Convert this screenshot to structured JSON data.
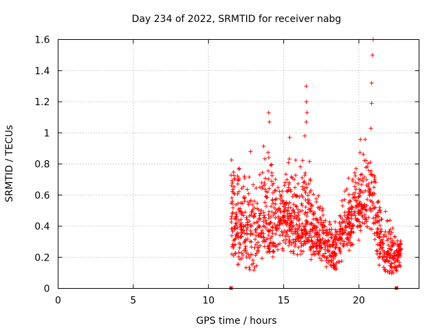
{
  "chart_data": {
    "type": "scatter",
    "title": "Day 234 of 2022, SRMTID for receiver nabg",
    "xlabel": "GPS time / hours",
    "ylabel": "SRMTID / TECUs",
    "xlim": [
      0,
      24
    ],
    "ylim": [
      0,
      1.6
    ],
    "xticks": [
      0,
      5,
      10,
      15,
      20
    ],
    "xtick_labels": [
      "0",
      "5",
      "10",
      "15",
      "20"
    ],
    "yticks": [
      0,
      0.2,
      0.4,
      0.6,
      0.8,
      1.0,
      1.2,
      1.4,
      1.6
    ],
    "ytick_labels": [
      "0",
      "0.2",
      "0.4",
      "0.6",
      "0.8",
      "1",
      "1.2",
      "1.4",
      "1.6"
    ],
    "grid": true,
    "marker": "+",
    "color": "#ff0000",
    "series": [
      {
        "name": "SRMTID",
        "x_range": [
          11.5,
          22.8
        ],
        "samples": 1300,
        "envelope": [
          [
            11.5,
            0.12,
            0.48,
            0.86
          ],
          [
            12.0,
            0.1,
            0.4,
            0.78
          ],
          [
            12.5,
            0.08,
            0.36,
            0.7
          ],
          [
            13.0,
            0.04,
            0.32,
            0.62
          ],
          [
            13.5,
            0.18,
            0.42,
            0.8
          ],
          [
            14.0,
            0.15,
            0.44,
            0.92
          ],
          [
            14.5,
            0.2,
            0.4,
            0.68
          ],
          [
            15.0,
            0.22,
            0.46,
            0.72
          ],
          [
            15.5,
            0.2,
            0.44,
            0.8
          ],
          [
            16.0,
            0.18,
            0.4,
            0.74
          ],
          [
            16.5,
            0.22,
            0.4,
            0.86
          ],
          [
            17.0,
            0.15,
            0.34,
            0.62
          ],
          [
            17.5,
            0.15,
            0.32,
            0.55
          ],
          [
            18.0,
            0.12,
            0.26,
            0.42
          ],
          [
            18.5,
            0.08,
            0.22,
            0.4
          ],
          [
            19.0,
            0.2,
            0.38,
            0.65
          ],
          [
            19.5,
            0.22,
            0.46,
            0.72
          ],
          [
            20.0,
            0.26,
            0.52,
            0.88
          ],
          [
            20.5,
            0.28,
            0.58,
            0.95
          ],
          [
            20.9,
            0.3,
            0.6,
            0.98
          ],
          [
            21.1,
            0.18,
            0.4,
            0.68
          ],
          [
            21.5,
            0.1,
            0.26,
            0.48
          ],
          [
            22.0,
            0.08,
            0.22,
            0.44
          ],
          [
            22.5,
            0.06,
            0.2,
            0.34
          ],
          [
            22.8,
            0.15,
            0.25,
            0.32
          ]
        ],
        "notable_points": [
          {
            "x": 14.0,
            "y": 1.13
          },
          {
            "x": 14.05,
            "y": 1.07
          },
          {
            "x": 16.5,
            "y": 1.3
          },
          {
            "x": 16.5,
            "y": 1.2
          },
          {
            "x": 16.55,
            "y": 1.13
          },
          {
            "x": 16.5,
            "y": 1.07
          },
          {
            "x": 20.8,
            "y": 1.03
          },
          {
            "x": 20.85,
            "y": 1.32
          },
          {
            "x": 20.85,
            "y": 1.19
          },
          {
            "x": 20.9,
            "y": 1.5
          },
          {
            "x": 20.95,
            "y": 1.6
          },
          {
            "x": 12.8,
            "y": 0.88
          },
          {
            "x": 15.4,
            "y": 0.97
          },
          {
            "x": 16.4,
            "y": 0.98
          }
        ]
      }
    ],
    "markers_at_zero": [
      11.5,
      22.5
    ]
  }
}
